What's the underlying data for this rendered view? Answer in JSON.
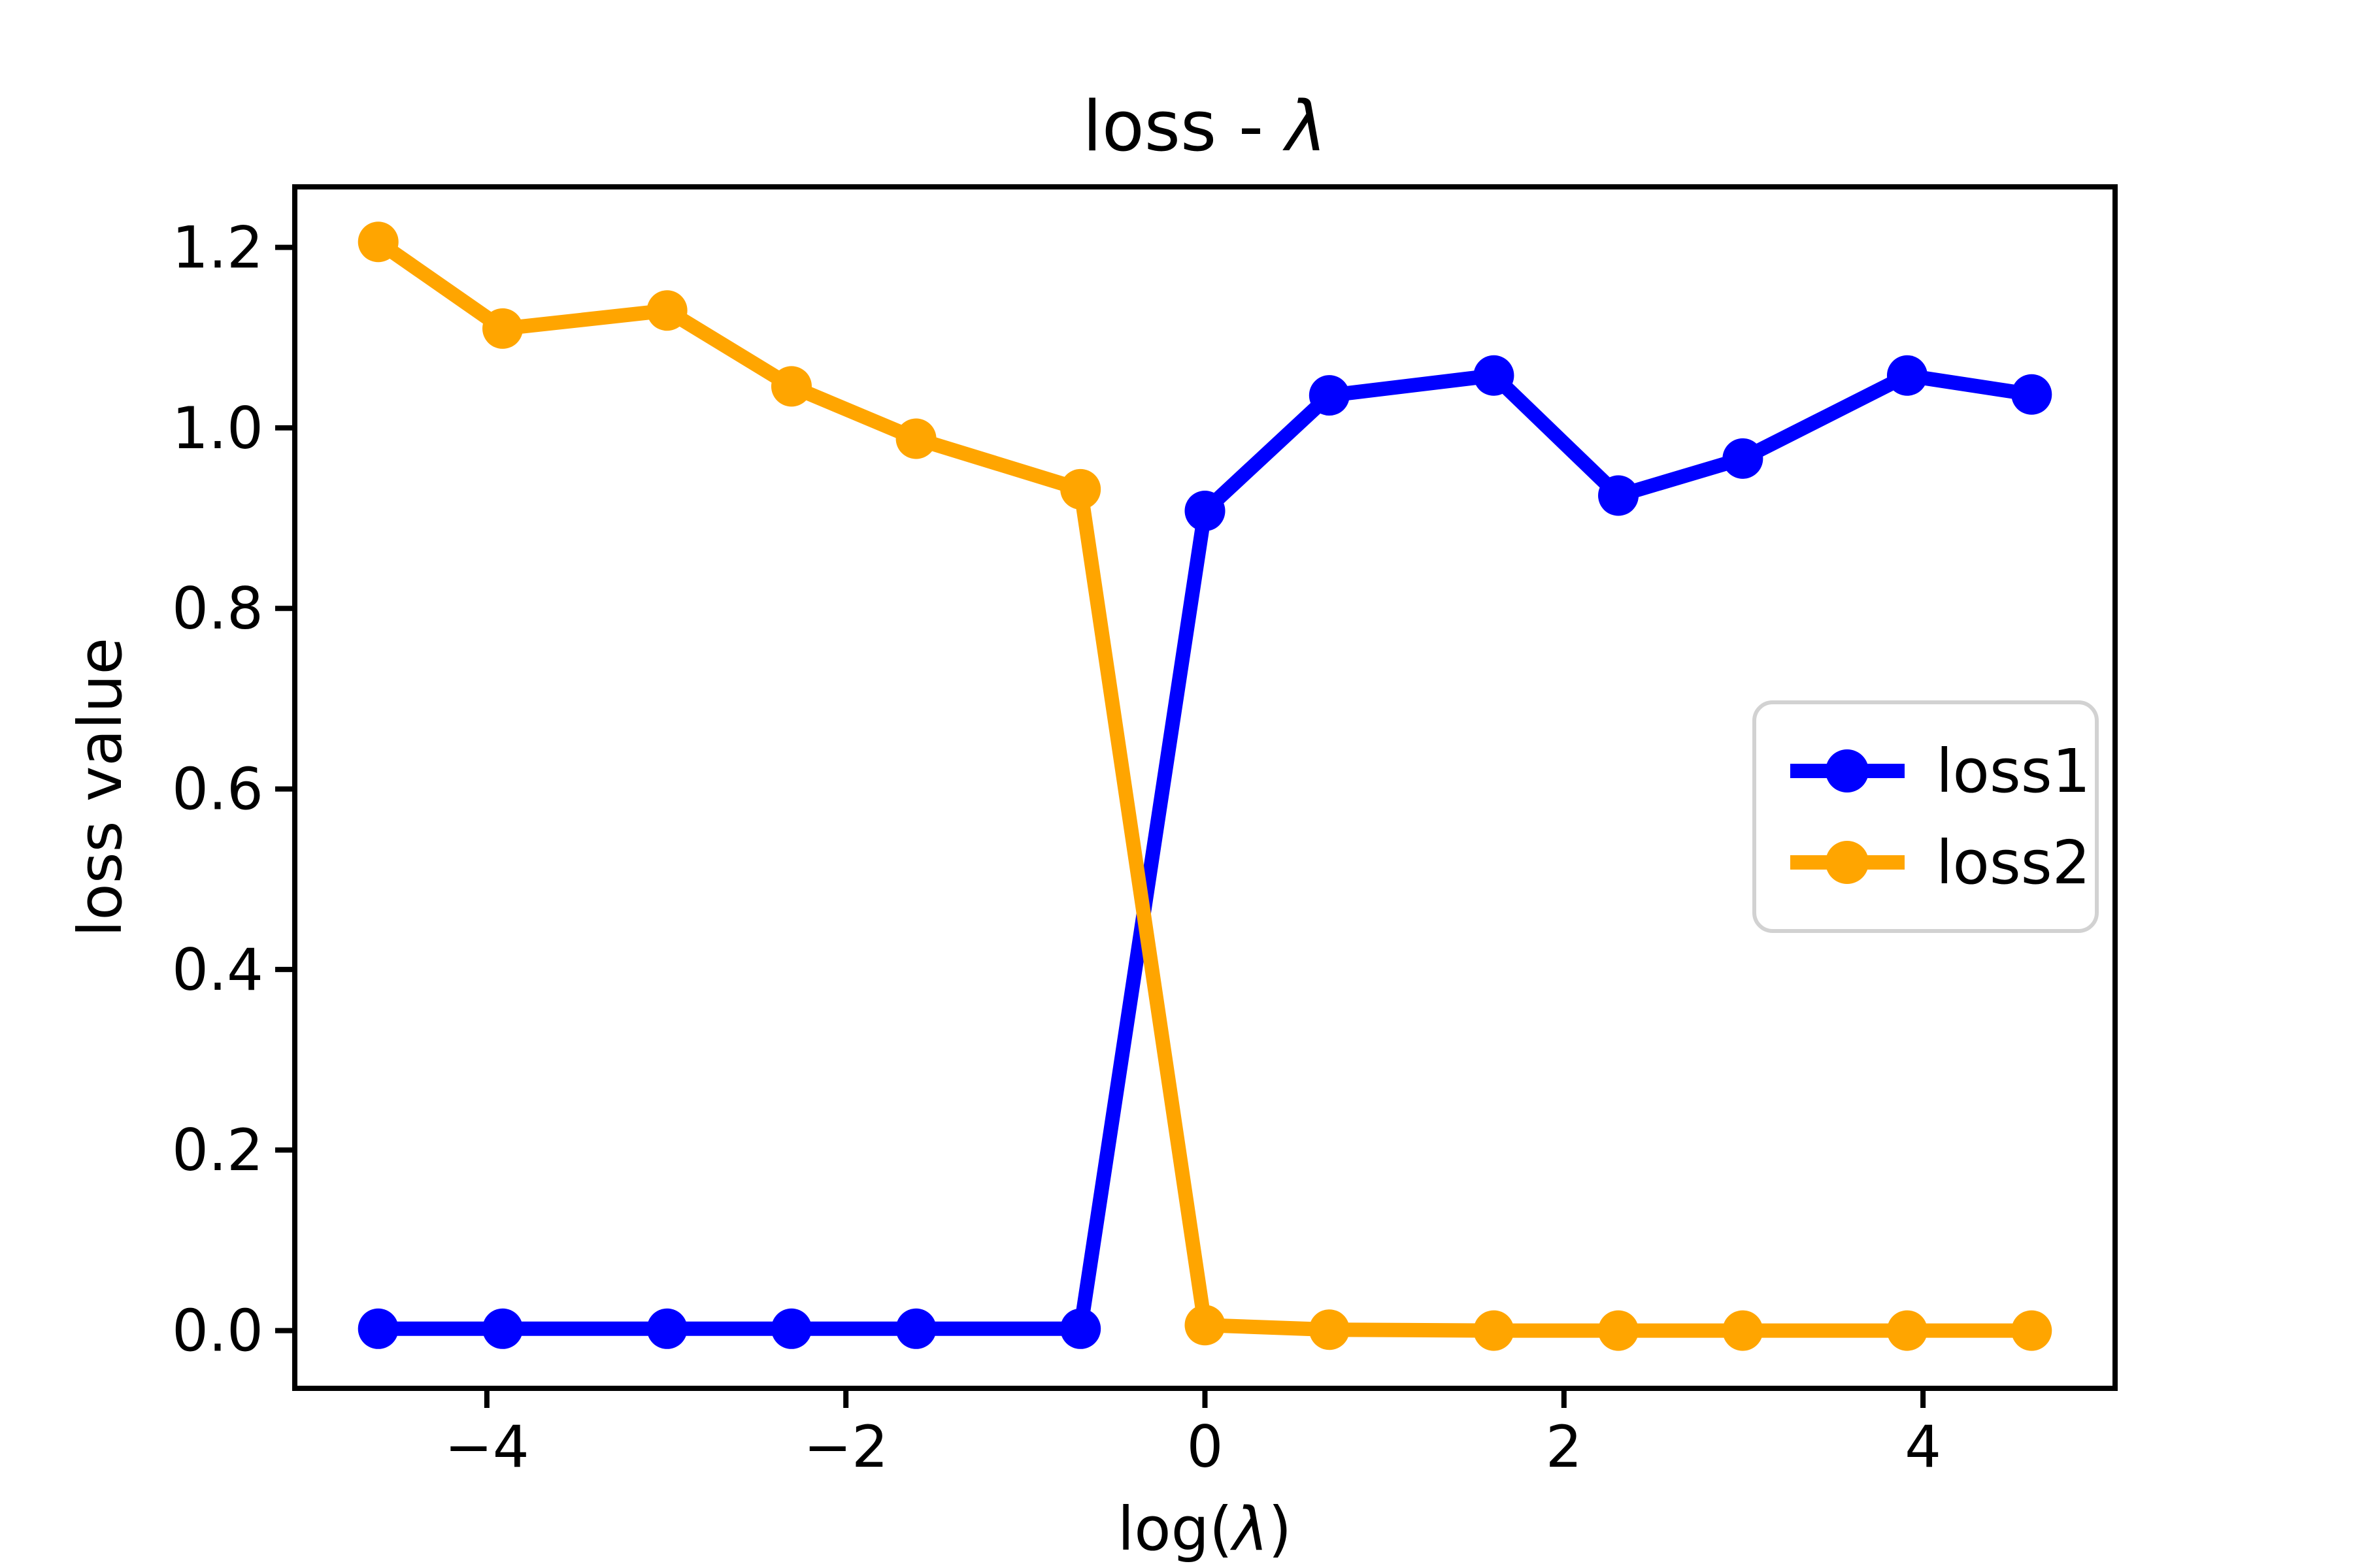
{
  "figure": {
    "background_color": "#ffffff",
    "axes_edge_color": "#000000",
    "legend_border_color": "#d2d2d2"
  },
  "chart_data": {
    "type": "line",
    "title": "loss - λ",
    "xlabel": "log(λ)",
    "ylabel": "loss value",
    "grid": false,
    "legend_position": "center-right",
    "xlim": [
      -5.07,
      5.07
    ],
    "ylim": [
      -0.064,
      1.267
    ],
    "xticks": [
      -4,
      -2,
      0,
      2,
      4
    ],
    "yticks": [
      0.0,
      0.2,
      0.4,
      0.6,
      0.8,
      1.0,
      1.2
    ],
    "x": [
      -4.605,
      -3.912,
      -2.996,
      -2.303,
      -1.609,
      -0.693,
      0.0,
      0.693,
      1.609,
      2.303,
      2.996,
      3.912,
      4.605
    ],
    "series": [
      {
        "name": "loss1",
        "color": "#0000ff",
        "values": [
          0.002,
          0.002,
          0.002,
          0.002,
          0.002,
          0.002,
          0.908,
          1.036,
          1.058,
          0.925,
          0.966,
          1.058,
          1.037
        ]
      },
      {
        "name": "loss2",
        "color": "#ffa500",
        "values": [
          1.206,
          1.11,
          1.13,
          1.046,
          0.988,
          0.932,
          0.006,
          0.001,
          0.0,
          0.0,
          0.0,
          0.0,
          0.0
        ]
      }
    ]
  }
}
